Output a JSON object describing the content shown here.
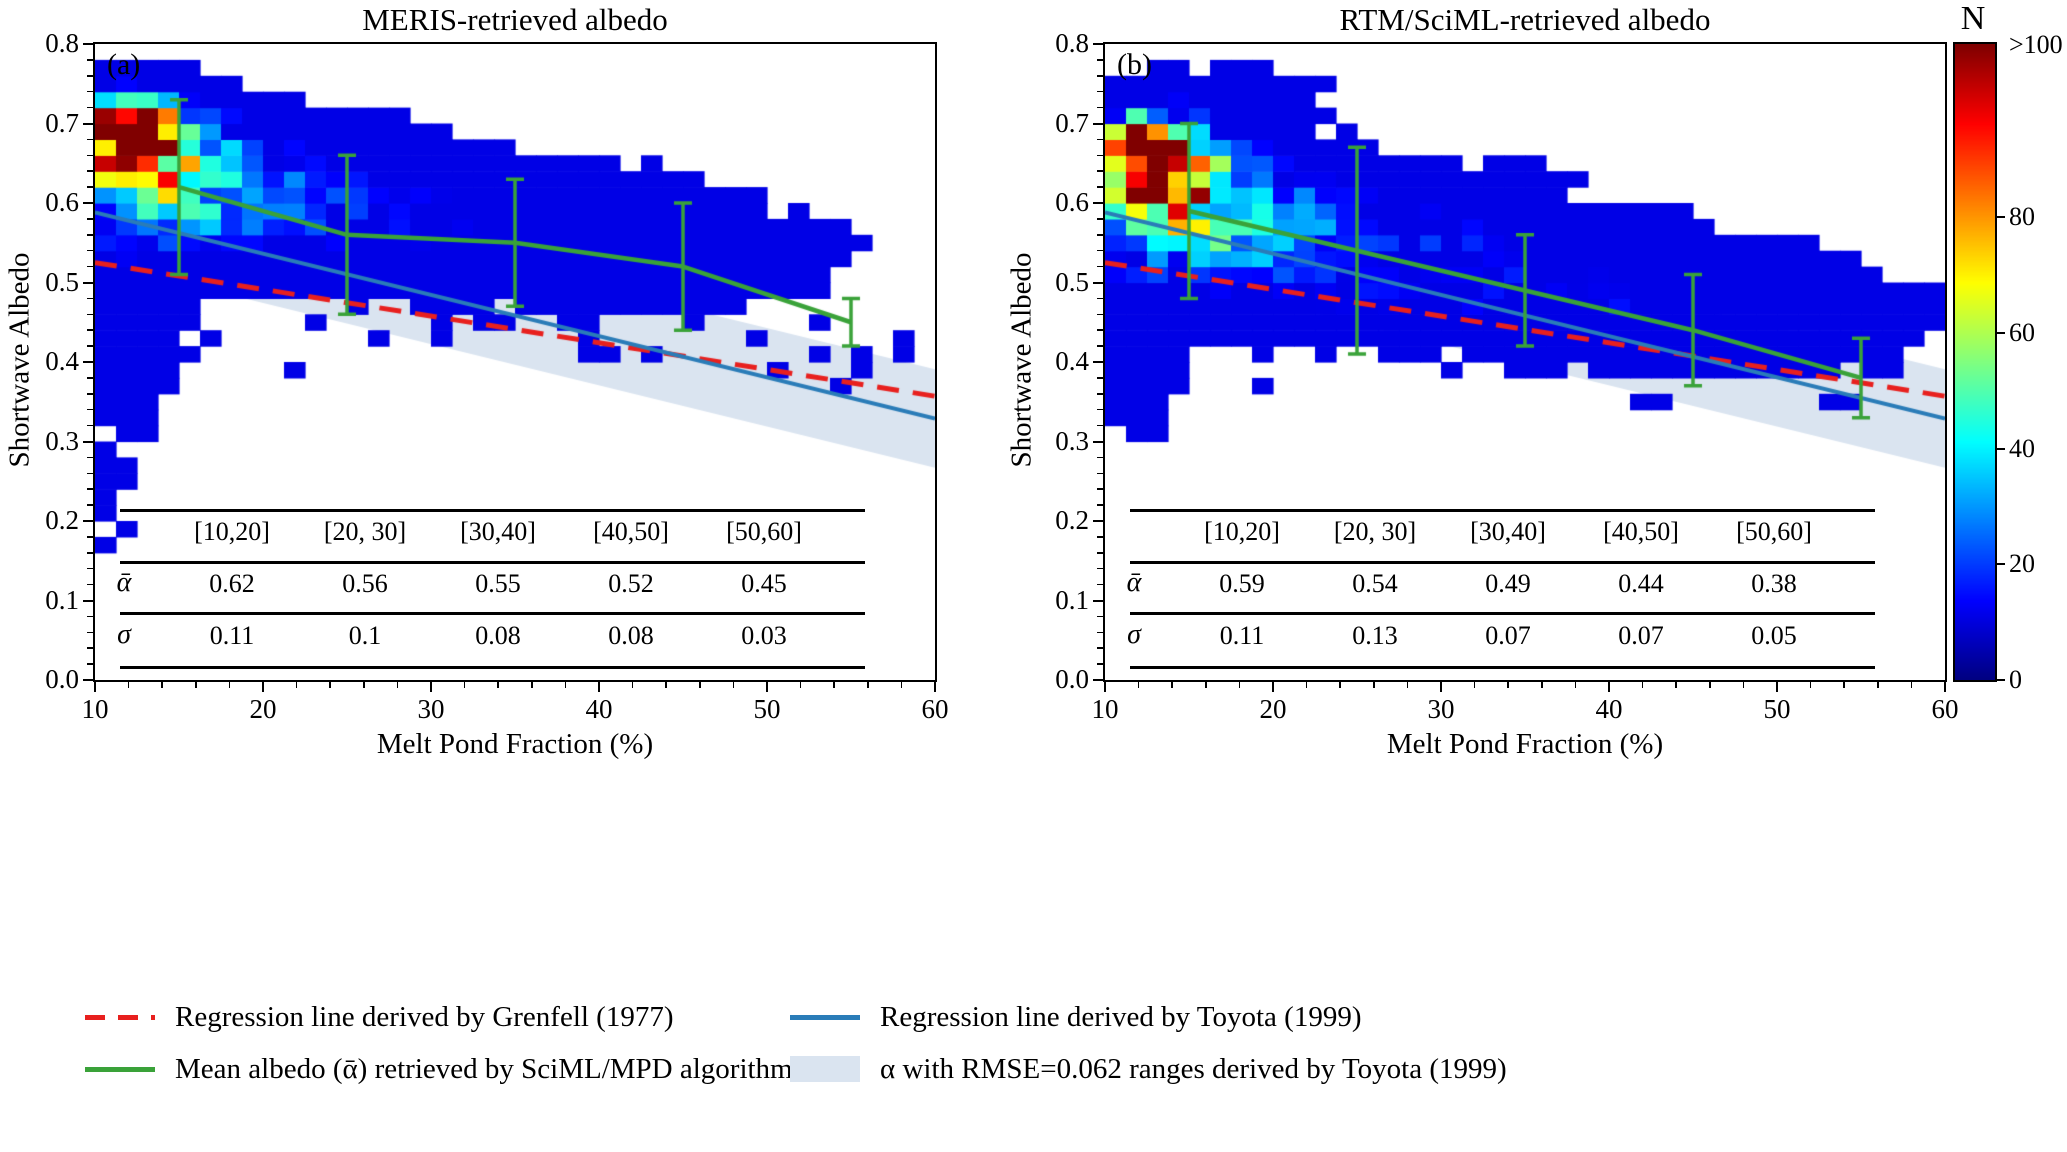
{
  "figure": {
    "background": "#ffffff",
    "colors": {
      "grenfell": "#e8201e",
      "toyota": "#2a7cb8",
      "mean": "#3aa239",
      "band": "#dae4f0",
      "axis": "#000000"
    },
    "colorbar": {
      "title": "N",
      "top_label": ">100",
      "ticks": [
        0,
        20,
        40,
        60,
        80
      ],
      "vmax": 110
    },
    "legend": {
      "items": [
        {
          "swatch": "dashed-line",
          "color": "#e8201e",
          "label": "Regression line derived by Grenfell (1977)"
        },
        {
          "swatch": "solid-line",
          "color": "#3aa239",
          "label": "Mean albedo (ᾱ) retrieved by SciML/MPD algorithm"
        },
        {
          "swatch": "solid-line",
          "color": "#2a7cb8",
          "label": "Regression line derived by Toyota (1999)"
        },
        {
          "swatch": "band",
          "color": "#dae4f0",
          "label": "α with RMSE=0.062 ranges derived by Toyota (1999)"
        }
      ]
    }
  },
  "chart_data": [
    {
      "type": "heatmap",
      "panel_label": "(a)",
      "title": "MERIS-retrieved albedo",
      "xlabel": "Melt Pond Fraction (%)",
      "ylabel": "Shortwave Albedo",
      "xlim": [
        10,
        60
      ],
      "ylim": [
        0,
        0.8
      ],
      "xticks": [
        "10",
        "20",
        "30",
        "40",
        "50",
        "60"
      ],
      "yticks": [
        "0.0",
        "0.1",
        "0.2",
        "0.3",
        "0.4",
        "0.5",
        "0.6",
        "0.7",
        "0.8"
      ],
      "x_minor_step": 2,
      "y_minor_step": 0.02,
      "mean_albedo_line": {
        "x": [
          15,
          25,
          35,
          45,
          55
        ],
        "y": [
          0.62,
          0.56,
          0.55,
          0.52,
          0.45
        ],
        "yerr": [
          0.11,
          0.1,
          0.08,
          0.08,
          0.03
        ]
      },
      "grenfell_regression": {
        "x": [
          10,
          60
        ],
        "y": [
          0.525,
          0.357
        ]
      },
      "toyota_regression": {
        "x": [
          10,
          60
        ],
        "y": [
          0.588,
          0.329
        ],
        "rmse": 0.062
      },
      "table": {
        "col_headers": [
          "[10,20]",
          "[20, 30]",
          "[30,40]",
          "[40,50]",
          "[50,60]"
        ],
        "rows": [
          {
            "symbol": "ᾱ",
            "values": [
              "0.62",
              "0.56",
              "0.55",
              "0.52",
              "0.45"
            ]
          },
          {
            "symbol": "σ",
            "values": [
              "0.11",
              "0.1",
              "0.08",
              "0.08",
              "0.03"
            ]
          }
        ]
      },
      "heatmap": {
        "nx": 40,
        "ny": 40,
        "seed": 42,
        "vmax": 110,
        "blobs": [
          {
            "cx": 12.0,
            "cy": 0.693,
            "sx": 1.5,
            "sy": 0.024,
            "amp": 160
          },
          {
            "cx": 13.2,
            "cy": 0.66,
            "sx": 2.6,
            "sy": 0.04,
            "amp": 55
          },
          {
            "cx": 15.5,
            "cy": 0.625,
            "sx": 4.2,
            "sy": 0.048,
            "amp": 26
          },
          {
            "cx": 22.0,
            "cy": 0.6,
            "sx": 6.5,
            "sy": 0.048,
            "amp": 11
          },
          {
            "cx": 33.0,
            "cy": 0.57,
            "sx": 9.0,
            "sy": 0.045,
            "amp": 5
          },
          {
            "cx": 43.0,
            "cy": 0.53,
            "sx": 7.0,
            "sy": 0.04,
            "amp": 3
          },
          {
            "cx": 11.5,
            "cy": 0.46,
            "sx": 2.0,
            "sy": 0.085,
            "amp": 4.5
          },
          {
            "cx": 10.6,
            "cy": 0.225,
            "sx": 1.0,
            "sy": 0.035,
            "amp": 2.2
          }
        ],
        "scatter": {
          "y0": 0.6,
          "slope": -0.004,
          "sy": 0.075,
          "amp": 0.5,
          "x0": 10,
          "decay": 28
        }
      }
    },
    {
      "type": "heatmap",
      "panel_label": "(b)",
      "title": "RTM/SciML-retrieved albedo",
      "xlabel": "Melt Pond Fraction (%)",
      "ylabel": "Shortwave Albedo",
      "xlim": [
        10,
        60
      ],
      "ylim": [
        0,
        0.8
      ],
      "xticks": [
        "10",
        "20",
        "30",
        "40",
        "50",
        "60"
      ],
      "yticks": [
        "0.0",
        "0.1",
        "0.2",
        "0.3",
        "0.4",
        "0.5",
        "0.6",
        "0.7",
        "0.8"
      ],
      "x_minor_step": 2,
      "y_minor_step": 0.02,
      "mean_albedo_line": {
        "x": [
          15,
          25,
          35,
          45,
          55
        ],
        "y": [
          0.59,
          0.54,
          0.49,
          0.44,
          0.38
        ],
        "yerr": [
          0.11,
          0.13,
          0.07,
          0.07,
          0.05
        ]
      },
      "grenfell_regression": {
        "x": [
          10,
          60
        ],
        "y": [
          0.525,
          0.357
        ]
      },
      "toyota_regression": {
        "x": [
          10,
          60
        ],
        "y": [
          0.588,
          0.329
        ],
        "rmse": 0.062
      },
      "table": {
        "col_headers": [
          "[10,20]",
          "[20, 30]",
          "[30,40]",
          "[40,50]",
          "[50,60]"
        ],
        "rows": [
          {
            "symbol": "ᾱ",
            "values": [
              "0.59",
              "0.54",
              "0.49",
              "0.44",
              "0.38"
            ]
          },
          {
            "symbol": "σ",
            "values": [
              "0.11",
              "0.13",
              "0.07",
              "0.07",
              "0.05"
            ]
          }
        ]
      },
      "heatmap": {
        "nx": 40,
        "ny": 40,
        "seed": 1337,
        "vmax": 110,
        "blobs": [
          {
            "cx": 12.5,
            "cy": 0.66,
            "sx": 1.6,
            "sy": 0.03,
            "amp": 120
          },
          {
            "cx": 13.5,
            "cy": 0.625,
            "sx": 2.8,
            "sy": 0.045,
            "amp": 55
          },
          {
            "cx": 16.5,
            "cy": 0.585,
            "sx": 4.5,
            "sy": 0.05,
            "amp": 28
          },
          {
            "cx": 26.0,
            "cy": 0.545,
            "sx": 7.5,
            "sy": 0.05,
            "amp": 13
          },
          {
            "cx": 38.0,
            "cy": 0.485,
            "sx": 9.0,
            "sy": 0.042,
            "amp": 7
          },
          {
            "cx": 48.0,
            "cy": 0.44,
            "sx": 6.0,
            "sy": 0.035,
            "amp": 3.5
          },
          {
            "cx": 11.5,
            "cy": 0.46,
            "sx": 2.0,
            "sy": 0.085,
            "amp": 4.5
          },
          {
            "cx": 19.0,
            "cy": 0.745,
            "sx": 3.5,
            "sy": 0.022,
            "amp": 2.0
          }
        ],
        "scatter": {
          "y0": 0.585,
          "slope": -0.0042,
          "sy": 0.065,
          "amp": 0.55,
          "x0": 10,
          "decay": 32
        }
      }
    }
  ]
}
